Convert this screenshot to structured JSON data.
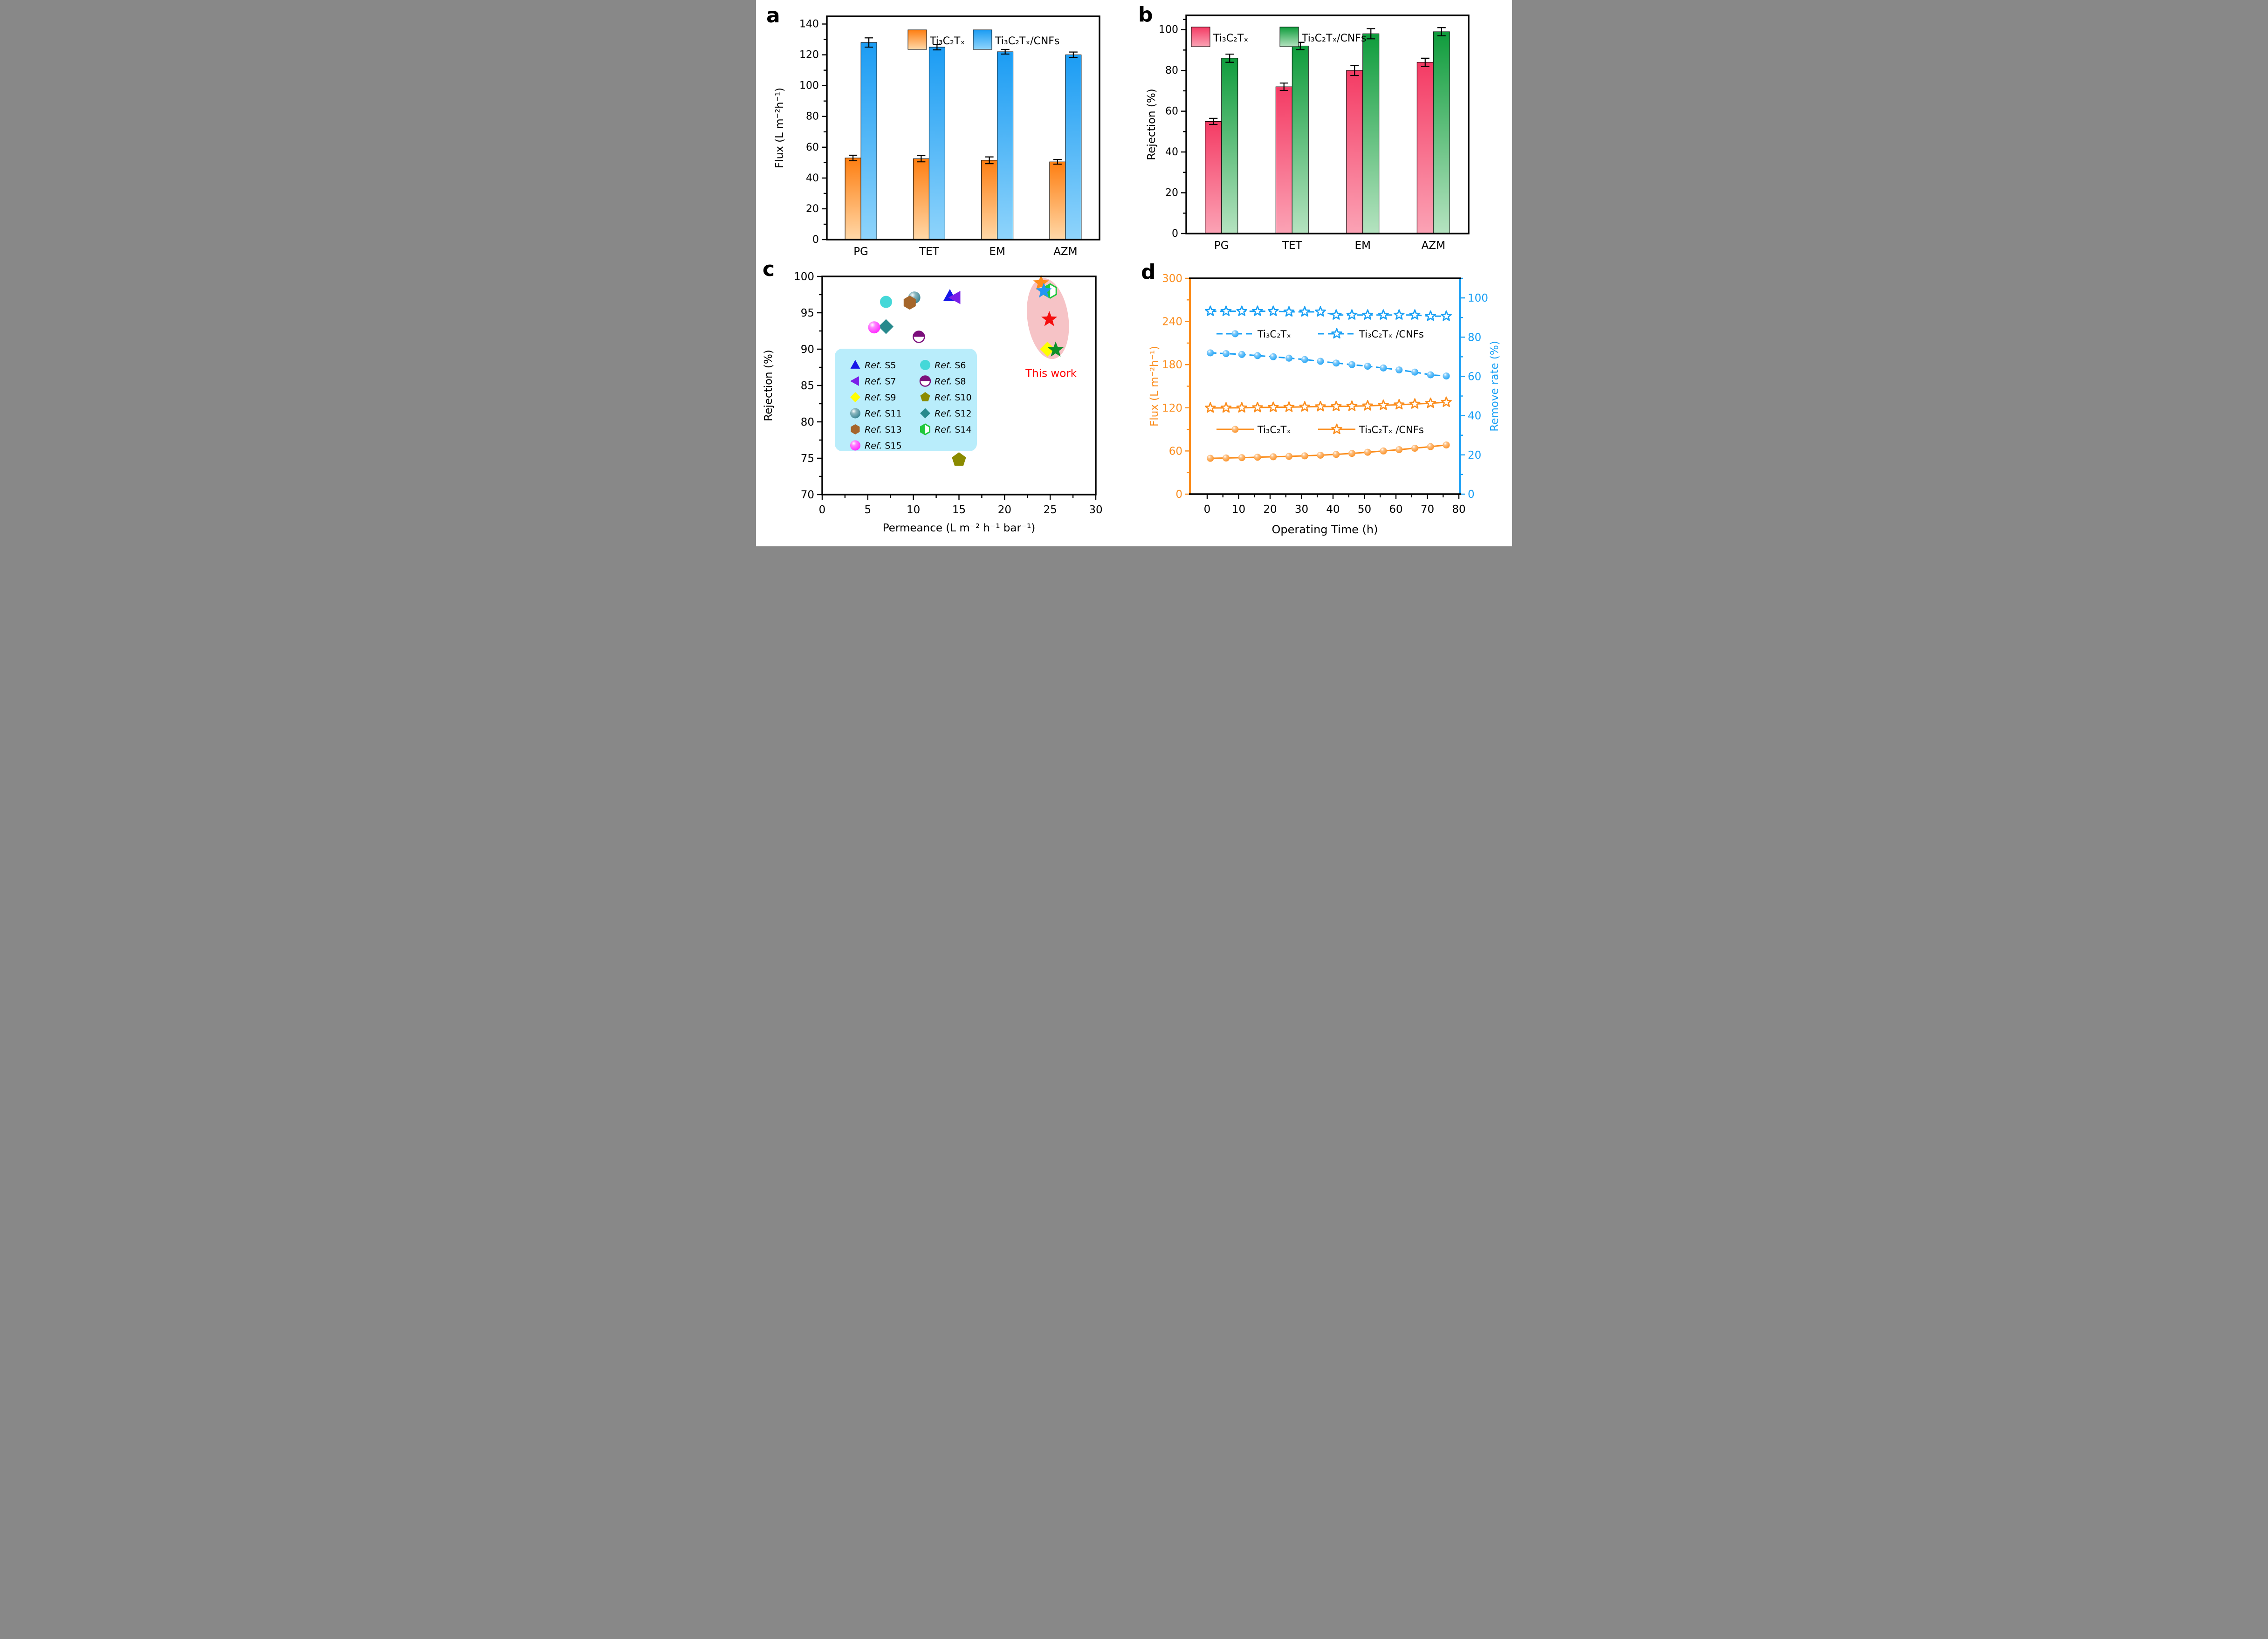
{
  "figure": {
    "background": "#ffffff"
  },
  "chart_data": [
    {
      "id": "a",
      "panel_letter": "a",
      "type": "bar",
      "ylabel": "Flux (L m⁻²h⁻¹)",
      "ylim": [
        0,
        145
      ],
      "ytick_step": 20,
      "yminor_step": 10,
      "categories": [
        "PG",
        "TET",
        "EM",
        "AZM"
      ],
      "series": [
        {
          "name": "Ti₃C₂Tₓ",
          "color_top": "#fe7e11",
          "color_bottom": "#ffd8a8",
          "values": [
            53,
            52.5,
            51.5,
            50.5
          ],
          "errors": [
            1.8,
            2,
            2.2,
            1.5
          ]
        },
        {
          "name": "Ti₃C₂Tₓ/CNFs",
          "color_top": "#1b9cf3",
          "color_bottom": "#8fd4fb",
          "values": [
            128,
            125,
            122,
            120
          ],
          "errors": [
            3,
            1.8,
            1.5,
            1.8
          ]
        }
      ]
    },
    {
      "id": "b",
      "panel_letter": "b",
      "type": "bar",
      "ylabel": "Rejection (%)",
      "ylim": [
        0,
        107
      ],
      "ytick_step": 20,
      "yminor_step": 10,
      "extra_minor_tick": 105,
      "categories": [
        "PG",
        "TET",
        "EM",
        "AZM"
      ],
      "series": [
        {
          "name": "Ti₃C₂Tₓ",
          "color_top": "#f43b64",
          "color_bottom": "#fba3b5",
          "values": [
            55,
            72,
            80,
            84
          ],
          "errors": [
            1.5,
            1.8,
            2.5,
            2
          ]
        },
        {
          "name": "Ti₃C₂Tₓ/CNFs",
          "color_top": "#0f9c3c",
          "color_bottom": "#b5e3c0",
          "values": [
            86,
            92,
            98,
            99
          ],
          "errors": [
            2,
            1.8,
            2.5,
            2
          ]
        }
      ]
    },
    {
      "id": "c",
      "panel_letter": "c",
      "type": "scatter",
      "xlabel": "Permeance (L m⁻² h⁻¹ bar⁻¹)",
      "ylabel": "Rejection (%)",
      "xlim": [
        0,
        30
      ],
      "xtick_step": 5,
      "xminor_step": 2.5,
      "ylim": [
        70,
        100
      ],
      "ytick_step": 5,
      "yminor_step": 2.5,
      "legend_bg": "#b9edfb",
      "ref_word": "Ref.",
      "points": [
        {
          "id": "S5",
          "marker": "triangle-up",
          "color": "#1616e8",
          "x": 14.0,
          "y": 97.3
        },
        {
          "id": "S6",
          "marker": "circle",
          "color": "#45d8d8",
          "x": 7.0,
          "y": 96.5
        },
        {
          "id": "S7",
          "marker": "triangle-left",
          "color": "#7a1fe8",
          "x": 14.6,
          "y": 97.1
        },
        {
          "id": "S8",
          "marker": "half-circle",
          "color": "#7c0f7c",
          "x": 10.6,
          "y": 91.7
        },
        {
          "id": "S9",
          "marker": "diamond",
          "color": "#ffff00",
          "x": 24.7,
          "y": 90.0
        },
        {
          "id": "S10",
          "marker": "pentagon",
          "color": "#8b8b00",
          "x": 15.0,
          "y": 74.8
        },
        {
          "id": "S11",
          "marker": "sphere",
          "color": "#2e7d8c",
          "x": 10.1,
          "y": 97.1
        },
        {
          "id": "S12",
          "marker": "diamond",
          "color": "#27898c",
          "x": 7.0,
          "y": 93.1
        },
        {
          "id": "S13",
          "marker": "hexagon",
          "color": "#a5662b",
          "x": 9.6,
          "y": 96.4
        },
        {
          "id": "S14",
          "marker": "half-hexagon",
          "color": "#1fc83c",
          "x": 25.0,
          "y": 98.0
        },
        {
          "id": "S15",
          "marker": "sphere",
          "color": "#ff1aff",
          "x": 5.7,
          "y": 93.0
        }
      ],
      "this_work": {
        "label": "This work",
        "label_color": "#ff0000",
        "label_x": 25.1,
        "label_y": 86.2,
        "ellipse": {
          "cx": 24.75,
          "cy": 94.2,
          "rx": 2.25,
          "ry": 5.6,
          "rotation": -8,
          "fill": "#f6c3c6"
        },
        "points": [
          {
            "marker": "star",
            "color": "#ff8c1a",
            "x": 24.0,
            "y": 99.1
          },
          {
            "marker": "star",
            "color": "#2196f3",
            "x": 24.3,
            "y": 98.0
          },
          {
            "marker": "star",
            "color": "#f50f0f",
            "x": 24.9,
            "y": 94.1
          },
          {
            "marker": "star",
            "color": "#0e8f28",
            "x": 25.6,
            "y": 89.9
          }
        ]
      }
    },
    {
      "id": "d",
      "panel_letter": "d",
      "type": "line",
      "xlabel": "Operating Time (h)",
      "xlim_data": [
        0,
        80
      ],
      "xtick_step": 10,
      "xminor_step": 5,
      "left_axis": {
        "label": "Flux (L m⁻²h⁻¹)",
        "color": "#fb8d1d",
        "lim": [
          0,
          300
        ],
        "tick_step": 60,
        "minor_step": 30
      },
      "right_axis": {
        "label": "Remove rate (%)",
        "color": "#1aa0f5",
        "lim": [
          0,
          110
        ],
        "tick_step": 20,
        "minor_step": 10
      },
      "x": [
        1,
        6,
        11,
        16,
        21,
        26,
        31,
        36,
        41,
        46,
        51,
        56,
        61,
        66,
        71,
        76
      ],
      "series": [
        {
          "name": "Ti₃C₂Tₓ",
          "axis": "right",
          "marker": "sphere",
          "line": "dashed",
          "color": "#1aa0f5",
          "values": [
            72,
            71.6,
            71.2,
            70.6,
            70,
            69.3,
            68.6,
            67.7,
            66.8,
            66,
            65.2,
            64.3,
            63.3,
            62.2,
            60.8,
            60.2
          ]
        },
        {
          "name": "Ti₃C₂Tₓ /CNFs",
          "axis": "right",
          "marker": "open-star",
          "line": "dashed",
          "color": "#1aa0f5",
          "values": [
            93.2,
            93.2,
            93.2,
            93.2,
            93.2,
            92.9,
            92.9,
            92.9,
            91.3,
            91.3,
            91.3,
            91.3,
            91.3,
            91.3,
            90.7,
            90.7
          ]
        },
        {
          "name": "Ti₃C₂Tₓ",
          "axis": "left",
          "marker": "sphere",
          "line": "solid",
          "color": "#fb8d1d",
          "values": [
            49.8,
            50.2,
            50.7,
            51.3,
            51.9,
            52.5,
            53.2,
            54.1,
            55.2,
            56.6,
            58.2,
            60,
            61.8,
            63.8,
            66,
            68.3
          ]
        },
        {
          "name": "Ti₃C₂Tₓ /CNFs",
          "axis": "left",
          "marker": "open-star",
          "line": "solid",
          "color": "#fb8d1d",
          "values": [
            119.8,
            119.9,
            120,
            120.4,
            120.7,
            120.9,
            121.3,
            121.7,
            121.9,
            122.2,
            122.8,
            123.5,
            124.3,
            125.3,
            126.3,
            127.8
          ]
        }
      ]
    }
  ]
}
